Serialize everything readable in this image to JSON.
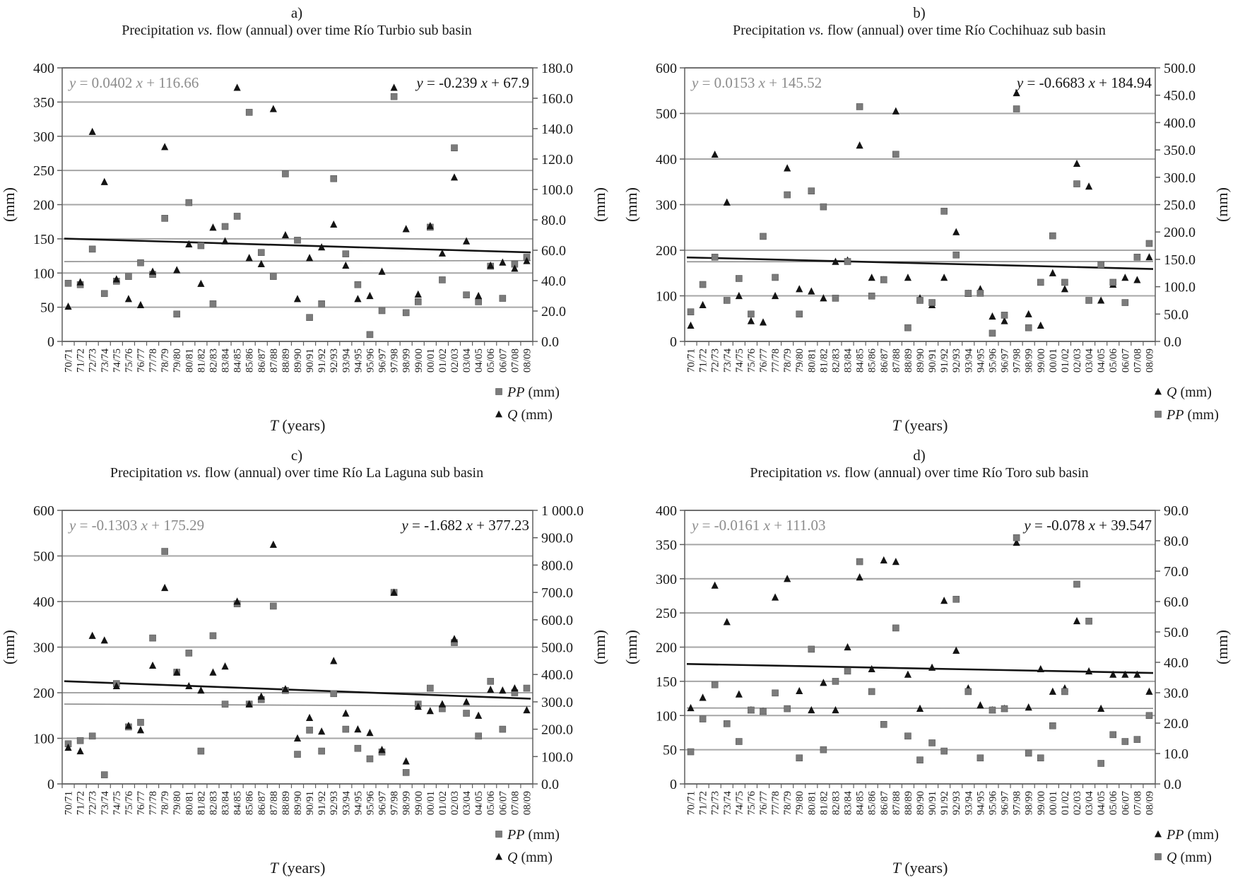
{
  "figure": {
    "background": "#ffffff",
    "sym_y": "y",
    "sym_x": "x",
    "colors": {
      "square_marker": "#7b7b7b",
      "triangle_marker": "#141414",
      "gridline": "#a6a6a6",
      "axis_frame": "#5f5f5f",
      "gray_equation": "#8c8c8c",
      "black_equation": "#141414"
    }
  },
  "chart_data": [
    {
      "type": "scatter",
      "panel_label": "a)",
      "title_pre": "Precipitation ",
      "title_vs": "vs.",
      "title_post": " flow (annual) over time Río Turbio sub basin",
      "xlabel_sym": "T",
      "xlabel_rest": " (years)",
      "ylabel_left": "(mm)",
      "ylabel_right": "(mm)",
      "x_categories": [
        "70/71",
        "71/72",
        "72/73",
        "73/74",
        "74/75",
        "75/76",
        "76/77",
        "77/78",
        "78/79",
        "79/80",
        "80/81",
        "81/82",
        "82/83",
        "83/84",
        "84/85",
        "85/86",
        "86/87",
        "87/88",
        "88/89",
        "89/90",
        "90/91",
        "91/92",
        "92/93",
        "93/94",
        "94/95",
        "95/96",
        "96/97",
        "97/98",
        "98/99",
        "99/00",
        "00/01",
        "01/02",
        "02/03",
        "03/04",
        "04/05",
        "05/06",
        "06/07",
        "07/08",
        "08/09"
      ],
      "left_axis": {
        "min": 0,
        "max": 400,
        "ticks": [
          "400",
          "350",
          "300",
          "250",
          "200",
          "150",
          "100",
          "50",
          "0"
        ]
      },
      "right_axis": {
        "min": 0,
        "max": 180,
        "ticks": [
          "180.0",
          "160.0",
          "140.0",
          "120.0",
          "100.0",
          "80.0",
          "60.0",
          "40.0",
          "20.0",
          "0.0"
        ]
      },
      "series": [
        {
          "name": "PP (mm)",
          "marker": "square",
          "axis": "left",
          "color": "#7b7b7b",
          "values": [
            85,
            83,
            135,
            70,
            88,
            95,
            115,
            98,
            180,
            40,
            203,
            140,
            55,
            168,
            183,
            335,
            130,
            95,
            245,
            148,
            35,
            55,
            238,
            128,
            83,
            10,
            45,
            358,
            42,
            58,
            167,
            90,
            283,
            68,
            58,
            110,
            63,
            113,
            123
          ]
        },
        {
          "name": "Q (mm)",
          "marker": "triangle",
          "axis": "right",
          "color": "#141414",
          "values": [
            23,
            39,
            138,
            105,
            41,
            28,
            24,
            46,
            128,
            47,
            64,
            38,
            75,
            66,
            167,
            55,
            51,
            153,
            70,
            28,
            55,
            62,
            77,
            50,
            28,
            30,
            46,
            167,
            74,
            31,
            76,
            58,
            108,
            66,
            30,
            50,
            52,
            48,
            53
          ]
        }
      ],
      "trendlines": [
        {
          "sym_y": "y",
          "mid": " = 0.0402 ",
          "sym_x": "x",
          "end": " + 116.66",
          "slope": 0.0402,
          "intercept": 116.66,
          "axis": "left",
          "color": "#8c8c8c",
          "width": 1.6,
          "label_pos": "left"
        },
        {
          "sym_y": "y",
          "mid": " = -0.239 ",
          "sym_x": "x",
          "end": " + 67.9",
          "slope": -0.239,
          "intercept": 67.9,
          "axis": "right",
          "color": "#141414",
          "width": 2.6,
          "label_pos": "right"
        }
      ],
      "legend": [
        {
          "marker": "square",
          "sym": "PP",
          "unit": " (mm)"
        },
        {
          "marker": "triangle",
          "sym": "Q",
          "unit": " (mm)"
        }
      ]
    },
    {
      "type": "scatter",
      "panel_label": "b)",
      "title_pre": "Precipitation ",
      "title_vs": "vs.",
      "title_post": " flow (annual) over time Río Cochihuaz sub basin",
      "xlabel_sym": "T",
      "xlabel_rest": " (years)",
      "ylabel_left": "(mm)",
      "ylabel_right": "(mm)",
      "x_categories": [
        "70/71",
        "71/72",
        "72/73",
        "73/74",
        "74/75",
        "75/76",
        "76/77",
        "77/78",
        "78/79",
        "79/80",
        "80/81",
        "81/82",
        "82/83",
        "83/84",
        "84/85",
        "85/86",
        "86/87",
        "87/88",
        "88/89",
        "89/90",
        "90/91",
        "91/92",
        "92/93",
        "93/94",
        "94/95",
        "95/96",
        "96/97",
        "97/98",
        "98/99",
        "99/00",
        "00/01",
        "01/02",
        "02/03",
        "03/04",
        "04/05",
        "05/06",
        "06/07",
        "07/08",
        "08/09"
      ],
      "left_axis": {
        "min": 0,
        "max": 600,
        "ticks": [
          "600",
          "500",
          "400",
          "300",
          "200",
          "100",
          "0"
        ]
      },
      "right_axis": {
        "min": 0,
        "max": 500,
        "ticks": [
          "500.0",
          "450.0",
          "400.0",
          "350.0",
          "300.0",
          "250.0",
          "200.0",
          "150.0",
          "100.0",
          "50.0",
          "0.0"
        ]
      },
      "series": [
        {
          "name": "Q (mm)",
          "marker": "triangle",
          "axis": "left",
          "color": "#141414",
          "values": [
            35,
            80,
            410,
            305,
            100,
            45,
            42,
            100,
            380,
            115,
            110,
            95,
            175,
            178,
            430,
            140,
            135,
            505,
            140,
            95,
            80,
            140,
            240,
            105,
            115,
            55,
            45,
            545,
            60,
            35,
            150,
            115,
            390,
            340,
            90,
            125,
            140,
            135,
            185
          ]
        },
        {
          "name": "PP (mm)",
          "marker": "square",
          "axis": "right",
          "color": "#7b7b7b",
          "values": [
            54,
            104,
            154,
            75,
            115,
            50,
            192,
            117,
            268,
            50,
            275,
            246,
            79,
            146,
            429,
            83,
            113,
            342,
            25,
            75,
            71,
            238,
            158,
            88,
            88,
            15,
            48,
            425,
            25,
            108,
            193,
            108,
            288,
            75,
            140,
            108,
            71,
            154,
            179
          ]
        }
      ],
      "trendlines": [
        {
          "sym_y": "y",
          "mid": " = 0.0153 ",
          "sym_x": "x",
          "end": " + 145.52",
          "slope": 0.0153,
          "intercept": 145.52,
          "axis": "right",
          "color": "#8c8c8c",
          "width": 1.6,
          "label_pos": "left"
        },
        {
          "sym_y": "y",
          "mid": " = -0.6683 ",
          "sym_x": "x",
          "end": " + 184.94",
          "slope": -0.6683,
          "intercept": 184.94,
          "axis": "left",
          "color": "#141414",
          "width": 2.6,
          "label_pos": "right"
        }
      ],
      "legend": [
        {
          "marker": "triangle",
          "sym": "Q",
          "unit": " (mm)"
        },
        {
          "marker": "square",
          "sym": "PP",
          "unit": " (mm)"
        }
      ]
    },
    {
      "type": "scatter",
      "panel_label": "c)",
      "title_pre": "Precipitation ",
      "title_vs": "vs.",
      "title_post": " flow (annual) over time Río La Laguna sub basin",
      "xlabel_sym": "T",
      "xlabel_rest": " (years)",
      "ylabel_left": "(mm)",
      "ylabel_right": "(mm)",
      "x_categories": [
        "70/71",
        "71/72",
        "72/73",
        "73/74",
        "74/75",
        "75/76",
        "76/77",
        "77/78",
        "78/79",
        "79/80",
        "80/81",
        "81/82",
        "82/83",
        "83/84",
        "84/85",
        "85/86",
        "86/87",
        "87/88",
        "88/89",
        "89/90",
        "90/91",
        "91/92",
        "92/93",
        "93/94",
        "94/95",
        "95/96",
        "96/97",
        "97/98",
        "98/99",
        "99/00",
        "00/01",
        "01/02",
        "02/03",
        "03/04",
        "04/05",
        "05/06",
        "06/07",
        "07/08",
        "08/09"
      ],
      "left_axis": {
        "min": 0,
        "max": 600,
        "ticks": [
          "600",
          "500",
          "400",
          "300",
          "200",
          "100",
          "0"
        ]
      },
      "right_axis": {
        "min": 0,
        "max": 1000,
        "ticks": [
          "1 000.0",
          "900.0",
          "800.0",
          "700.0",
          "600.0",
          "500.0",
          "400.0",
          "300.0",
          "200.0",
          "100.0",
          "0.0"
        ]
      },
      "series": [
        {
          "name": "PP (mm)",
          "marker": "square",
          "axis": "left",
          "color": "#7b7b7b",
          "values": [
            88,
            95,
            105,
            20,
            220,
            125,
            135,
            320,
            510,
            245,
            287,
            72,
            325,
            175,
            395,
            175,
            185,
            390,
            205,
            65,
            118,
            72,
            198,
            120,
            78,
            55,
            70,
            420,
            25,
            175,
            210,
            165,
            310,
            155,
            105,
            225,
            120,
            200,
            210
          ]
        },
        {
          "name": "Q (mm)",
          "marker": "triangle",
          "axis": "right",
          "color": "#141414",
          "values": [
            133,
            120,
            542,
            525,
            358,
            213,
            197,
            433,
            717,
            408,
            358,
            342,
            408,
            430,
            667,
            292,
            320,
            875,
            347,
            167,
            242,
            192,
            450,
            258,
            200,
            187,
            125,
            700,
            83,
            283,
            267,
            292,
            530,
            300,
            250,
            345,
            342,
            350,
            270
          ]
        }
      ],
      "trendlines": [
        {
          "sym_y": "y",
          "mid": " = -0.1303 ",
          "sym_x": "x",
          "end": " + 175.29",
          "slope": -0.1303,
          "intercept": 175.29,
          "axis": "left",
          "color": "#8c8c8c",
          "width": 1.6,
          "label_pos": "left"
        },
        {
          "sym_y": "y",
          "mid": " = -1.682 ",
          "sym_x": "x",
          "end": " + 377.23",
          "slope": -1.682,
          "intercept": 377.23,
          "axis": "right",
          "color": "#141414",
          "width": 2.6,
          "label_pos": "right"
        }
      ],
      "legend": [
        {
          "marker": "square",
          "sym": "PP",
          "unit": " (mm)"
        },
        {
          "marker": "triangle",
          "sym": "Q",
          "unit": " (mm)"
        }
      ]
    },
    {
      "type": "scatter",
      "panel_label": "d)",
      "title_pre": "Precipitation ",
      "title_vs": "vs.",
      "title_post": " flow (annual) over time Río Toro sub basin",
      "xlabel_sym": "T",
      "xlabel_rest": " (years)",
      "ylabel_left": "(mm)",
      "ylabel_right": "(mm)",
      "x_categories": [
        "70/71",
        "71/72",
        "72/73",
        "73/74",
        "74/75",
        "75/76",
        "76/77",
        "77/78",
        "78/79",
        "79/80",
        "80/81",
        "81/82",
        "82/83",
        "83/84",
        "84/85",
        "85/86",
        "86/87",
        "87/88",
        "88/89",
        "89/90",
        "90/91",
        "91/92",
        "92/93",
        "93/94",
        "94/95",
        "95/96",
        "96/97",
        "97/98",
        "98/99",
        "99/00",
        "00/01",
        "01/02",
        "02/03",
        "03/04",
        "04/05",
        "05/06",
        "06/07",
        "07/08",
        "08/09"
      ],
      "left_axis": {
        "min": 0,
        "max": 400,
        "ticks": [
          "400",
          "350",
          "300",
          "250",
          "200",
          "150",
          "100",
          "50",
          "0"
        ]
      },
      "right_axis": {
        "min": 0,
        "max": 90,
        "ticks": [
          "90.0",
          "80.0",
          "70.0",
          "60.0",
          "50.0",
          "40.0",
          "30.0",
          "20.0",
          "10.0",
          "0.0"
        ]
      },
      "series": [
        {
          "name": "PP (mm)",
          "marker": "triangle",
          "axis": "right",
          "color": "#141414",
          "values": [
            25.0,
            28.4,
            65.3,
            53.3,
            29.5,
            24.3,
            23.9,
            61.4,
            67.5,
            30.6,
            24.3,
            33.3,
            24.3,
            45.0,
            68.0,
            37.8,
            73.6,
            73.1,
            36.0,
            24.8,
            38.3,
            60.3,
            43.9,
            31.5,
            25.9,
            24.3,
            24.8,
            79.4,
            25.2,
            37.8,
            30.4,
            31.5,
            53.6,
            37.1,
            24.8,
            36.0,
            36.0,
            36.0,
            30.4
          ]
        },
        {
          "name": "Q (mm)",
          "marker": "square",
          "axis": "left",
          "color": "#7b7b7b",
          "values": [
            47,
            95,
            145,
            88,
            62,
            108,
            106,
            133,
            110,
            38,
            197,
            50,
            150,
            165,
            325,
            135,
            87,
            228,
            70,
            35,
            60,
            48,
            270,
            135,
            38,
            108,
            110,
            360,
            45,
            38,
            85,
            135,
            292,
            238,
            30,
            72,
            62,
            65,
            100
          ]
        }
      ],
      "trendlines": [
        {
          "sym_y": "y",
          "mid": " = -0.0161 ",
          "sym_x": "x",
          "end": " + 111.03",
          "slope": -0.0161,
          "intercept": 111.03,
          "axis": "left",
          "color": "#8c8c8c",
          "width": 1.6,
          "label_pos": "left"
        },
        {
          "sym_y": "y",
          "mid": " = -0.078 ",
          "sym_x": "x",
          "end": " + 39.547",
          "slope": -0.078,
          "intercept": 39.547,
          "axis": "right",
          "color": "#141414",
          "width": 2.6,
          "label_pos": "right"
        }
      ],
      "legend": [
        {
          "marker": "triangle",
          "sym": "PP",
          "unit": " (mm)"
        },
        {
          "marker": "square",
          "sym": "Q",
          "unit": " (mm)"
        }
      ]
    }
  ]
}
